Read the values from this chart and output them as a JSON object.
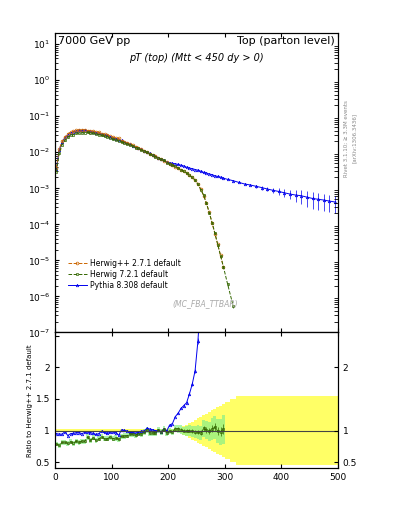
{
  "title_left": "7000 GeV pp",
  "title_right": "Top (parton level)",
  "main_title": "pT (top) (Mtt < 450 dy > 0)",
  "watermark": "(MC_FBA_TTBAR)",
  "right_label_top": "Rivet 3.1.10; ≥ 3.3M events",
  "right_label_bottom": "[arXiv:1306.3436]",
  "ylabel_ratio": "Ratio to Herwig++ 2.7.1 default",
  "legend": [
    {
      "label": "Herwig++ 2.7.1 default",
      "color": "#cc6600",
      "marker": "o",
      "ls": "--"
    },
    {
      "label": "Herwig 7.2.1 default",
      "color": "#336600",
      "marker": "s",
      "ls": "--"
    },
    {
      "label": "Pythia 8.308 default",
      "color": "#0000ee",
      "marker": "^",
      "ls": "-"
    }
  ],
  "ylim_main": [
    1e-07,
    20
  ],
  "ylim_ratio": [
    0.4,
    2.55
  ],
  "xlim": [
    0,
    500
  ],
  "xticks": [
    0,
    100,
    200,
    300,
    400,
    500
  ],
  "background_color": "#ffffff",
  "band_yellow": "#ffff66",
  "band_green": "#88ee88"
}
